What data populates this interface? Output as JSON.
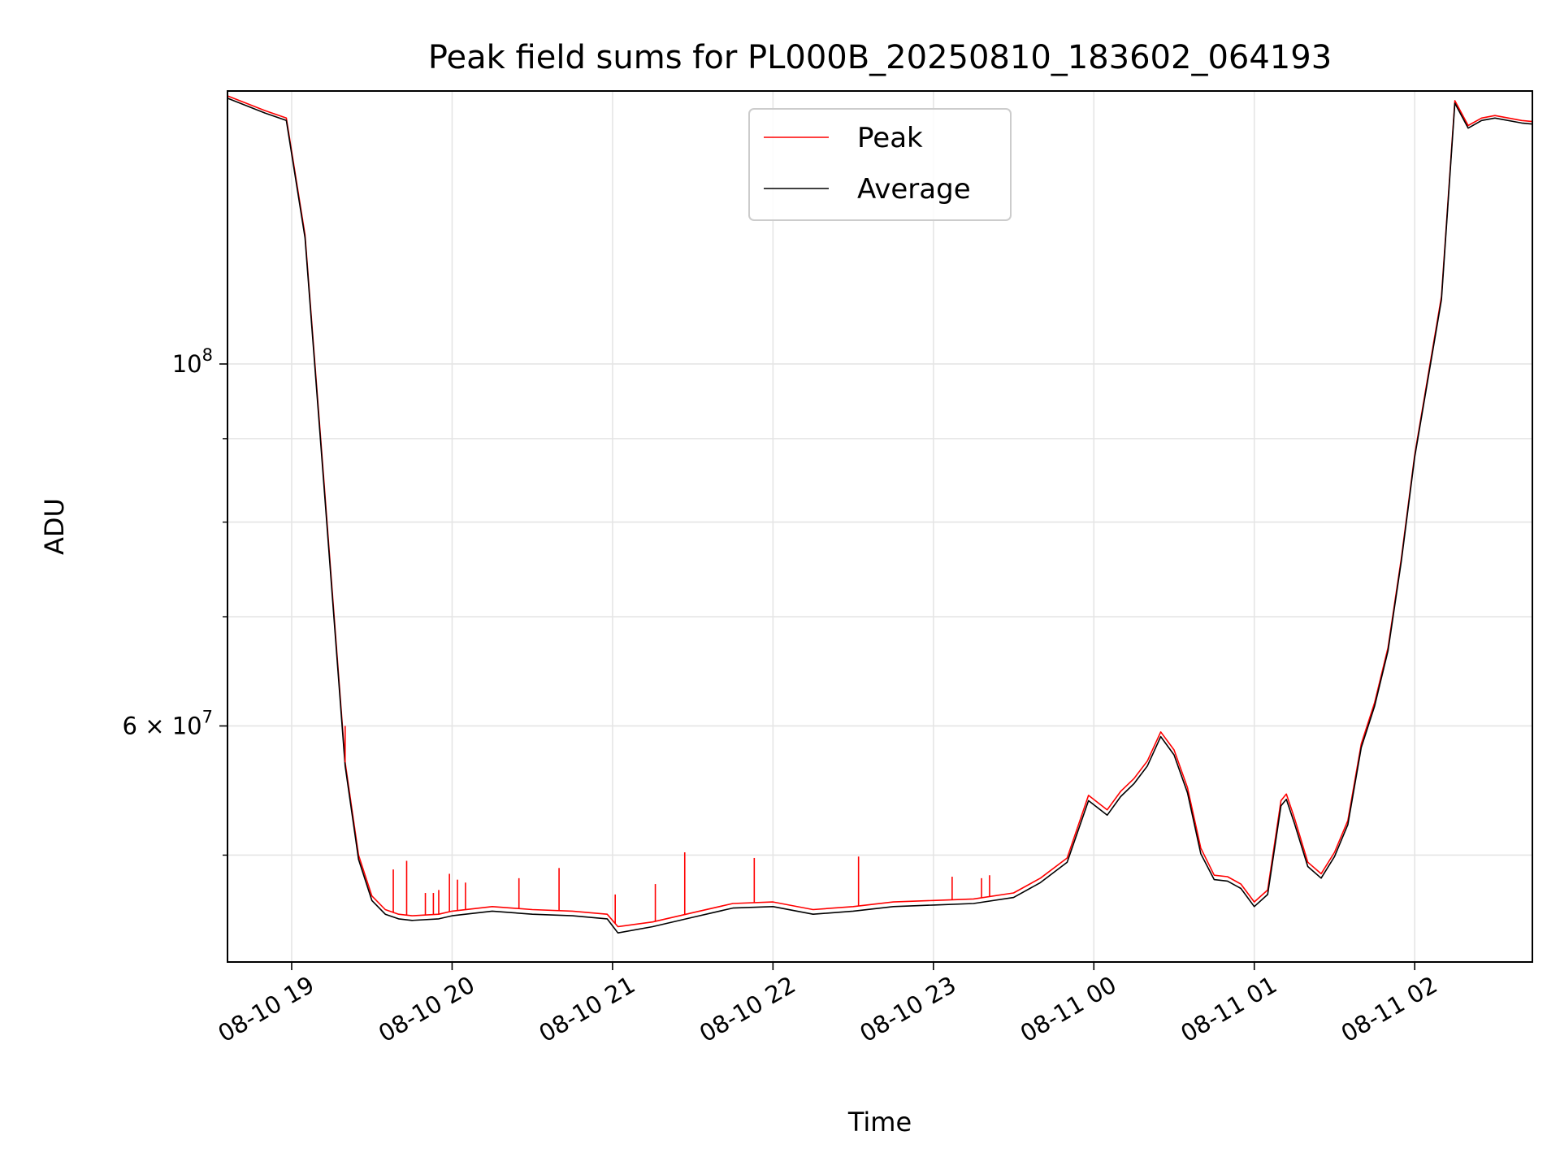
{
  "chart_data": {
    "type": "line",
    "title": "Peak field sums for PL000B_20250810_183602_064193",
    "xlabel": "Time",
    "ylabel": "ADU",
    "yscale": "log",
    "grid": true,
    "legend_position": "top-center",
    "xlim": [
      "2025-08-10 18:36",
      "2025-08-11 02:44"
    ],
    "ylim": [
      43000000,
      147000000
    ],
    "x_ticks": [
      "08-10 19",
      "08-10 20",
      "08-10 21",
      "08-10 22",
      "08-10 23",
      "08-11 00",
      "08-11 01",
      "08-11 02"
    ],
    "y_ticks": [
      {
        "value": 100000000,
        "base": "10",
        "exp": "8"
      },
      {
        "value": 60000000,
        "mant": "6",
        "times": "×",
        "base": "10",
        "exp": "7"
      }
    ],
    "y_minor_ticks": [
      50000000,
      70000000,
      80000000,
      90000000
    ],
    "series": [
      {
        "name": "Peak",
        "color": "#ff0000",
        "x": [
          "2025-08-10 18:36",
          "2025-08-10 18:50",
          "2025-08-10 18:58",
          "2025-08-10 19:05",
          "2025-08-10 19:12",
          "2025-08-10 19:20",
          "2025-08-10 19:25",
          "2025-08-10 19:30",
          "2025-08-10 19:35",
          "2025-08-10 19:40",
          "2025-08-10 19:45",
          "2025-08-10 19:55",
          "2025-08-10 20:00",
          "2025-08-10 20:15",
          "2025-08-10 20:30",
          "2025-08-10 20:45",
          "2025-08-10 20:58",
          "2025-08-10 21:02",
          "2025-08-10 21:15",
          "2025-08-10 21:30",
          "2025-08-10 21:45",
          "2025-08-10 22:00",
          "2025-08-10 22:15",
          "2025-08-10 22:30",
          "2025-08-10 22:45",
          "2025-08-10 23:00",
          "2025-08-10 23:15",
          "2025-08-10 23:30",
          "2025-08-10 23:40",
          "2025-08-10 23:50",
          "2025-08-10 23:58",
          "2025-08-11 00:05",
          "2025-08-11 00:10",
          "2025-08-11 00:15",
          "2025-08-11 00:20",
          "2025-08-11 00:25",
          "2025-08-11 00:30",
          "2025-08-11 00:35",
          "2025-08-11 00:40",
          "2025-08-11 00:45",
          "2025-08-11 00:50",
          "2025-08-11 00:55",
          "2025-08-11 01:00",
          "2025-08-11 01:05",
          "2025-08-11 01:10",
          "2025-08-11 01:12",
          "2025-08-11 01:15",
          "2025-08-11 01:20",
          "2025-08-11 01:25",
          "2025-08-11 01:30",
          "2025-08-11 01:35",
          "2025-08-11 01:40",
          "2025-08-11 01:45",
          "2025-08-11 01:50",
          "2025-08-11 01:55",
          "2025-08-11 02:00",
          "2025-08-11 02:10",
          "2025-08-11 02:15",
          "2025-08-11 02:20",
          "2025-08-11 02:25",
          "2025-08-11 02:30",
          "2025-08-11 02:40",
          "2025-08-11 02:44"
        ],
        "values": [
          146000000,
          143000000,
          141500000,
          120000000,
          85000000,
          57000000,
          50000000,
          47200000,
          46300000,
          46000000,
          45900000,
          46000000,
          46200000,
          46500000,
          46300000,
          46200000,
          46000000,
          45200000,
          45500000,
          46100000,
          46700000,
          46800000,
          46300000,
          46500000,
          46800000,
          46900000,
          47000000,
          47400000,
          48400000,
          49800000,
          54400000,
          53300000,
          54700000,
          55700000,
          57100000,
          59500000,
          58000000,
          55000000,
          50500000,
          48600000,
          48500000,
          48000000,
          46800000,
          47600000,
          54000000,
          54500000,
          52700000,
          49500000,
          48700000,
          50200000,
          52500000,
          58500000,
          62000000,
          67000000,
          76000000,
          88000000,
          110000000,
          145000000,
          140000000,
          141500000,
          142000000,
          141000000,
          140800000
        ]
      },
      {
        "name": "Average",
        "color": "#000000",
        "x": [
          "2025-08-10 18:36",
          "2025-08-10 18:50",
          "2025-08-10 18:58",
          "2025-08-10 19:05",
          "2025-08-10 19:12",
          "2025-08-10 19:20",
          "2025-08-10 19:25",
          "2025-08-10 19:30",
          "2025-08-10 19:35",
          "2025-08-10 19:40",
          "2025-08-10 19:45",
          "2025-08-10 19:55",
          "2025-08-10 20:00",
          "2025-08-10 20:15",
          "2025-08-10 20:30",
          "2025-08-10 20:45",
          "2025-08-10 20:58",
          "2025-08-10 21:02",
          "2025-08-10 21:15",
          "2025-08-10 21:30",
          "2025-08-10 21:45",
          "2025-08-10 22:00",
          "2025-08-10 22:15",
          "2025-08-10 22:30",
          "2025-08-10 22:45",
          "2025-08-10 23:00",
          "2025-08-10 23:15",
          "2025-08-10 23:30",
          "2025-08-10 23:40",
          "2025-08-10 23:50",
          "2025-08-10 23:58",
          "2025-08-11 00:05",
          "2025-08-11 00:10",
          "2025-08-11 00:15",
          "2025-08-11 00:20",
          "2025-08-11 00:25",
          "2025-08-11 00:30",
          "2025-08-11 00:35",
          "2025-08-11 00:40",
          "2025-08-11 00:45",
          "2025-08-11 00:50",
          "2025-08-11 00:55",
          "2025-08-11 01:00",
          "2025-08-11 01:05",
          "2025-08-11 01:10",
          "2025-08-11 01:12",
          "2025-08-11 01:15",
          "2025-08-11 01:20",
          "2025-08-11 01:25",
          "2025-08-11 01:30",
          "2025-08-11 01:35",
          "2025-08-11 01:40",
          "2025-08-11 01:45",
          "2025-08-11 01:50",
          "2025-08-11 01:55",
          "2025-08-11 02:00",
          "2025-08-11 02:10",
          "2025-08-11 02:15",
          "2025-08-11 02:20",
          "2025-08-11 02:25",
          "2025-08-11 02:30",
          "2025-08-11 02:40",
          "2025-08-11 02:44"
        ],
        "values": [
          145500000,
          142500000,
          141000000,
          119500000,
          84500000,
          56700000,
          49700000,
          46900000,
          46000000,
          45700000,
          45600000,
          45700000,
          45900000,
          46200000,
          46000000,
          45900000,
          45700000,
          44800000,
          45200000,
          45800000,
          46400000,
          46500000,
          46000000,
          46200000,
          46500000,
          46600000,
          46700000,
          47100000,
          48100000,
          49500000,
          54000000,
          52900000,
          54300000,
          55300000,
          56700000,
          59100000,
          57600000,
          54600000,
          50100000,
          48300000,
          48200000,
          47700000,
          46500000,
          47300000,
          53600000,
          54100000,
          52300000,
          49200000,
          48400000,
          49900000,
          52200000,
          58200000,
          61700000,
          66700000,
          75700000,
          87700000,
          109500000,
          144500000,
          139500000,
          141000000,
          141500000,
          140500000,
          140300000
        ]
      }
    ],
    "spikes": [
      {
        "x": "2025-08-10 19:20",
        "value": 60000000
      },
      {
        "x": "2025-08-10 19:38",
        "value": 49000000
      },
      {
        "x": "2025-08-10 19:43",
        "value": 49600000
      },
      {
        "x": "2025-08-10 19:50",
        "value": 47400000
      },
      {
        "x": "2025-08-10 19:53",
        "value": 47400000
      },
      {
        "x": "2025-08-10 19:55",
        "value": 47600000
      },
      {
        "x": "2025-08-10 19:59",
        "value": 48700000
      },
      {
        "x": "2025-08-10 20:02",
        "value": 48300000
      },
      {
        "x": "2025-08-10 20:05",
        "value": 48100000
      },
      {
        "x": "2025-08-10 20:25",
        "value": 48400000
      },
      {
        "x": "2025-08-10 20:40",
        "value": 49100000
      },
      {
        "x": "2025-08-10 21:01",
        "value": 47300000
      },
      {
        "x": "2025-08-10 21:16",
        "value": 48000000
      },
      {
        "x": "2025-08-10 21:27",
        "value": 50200000
      },
      {
        "x": "2025-08-10 21:53",
        "value": 49800000
      },
      {
        "x": "2025-08-10 22:32",
        "value": 49900000
      },
      {
        "x": "2025-08-10 23:07",
        "value": 48500000
      },
      {
        "x": "2025-08-10 23:18",
        "value": 48400000
      },
      {
        "x": "2025-08-10 23:21",
        "value": 48600000
      }
    ]
  }
}
